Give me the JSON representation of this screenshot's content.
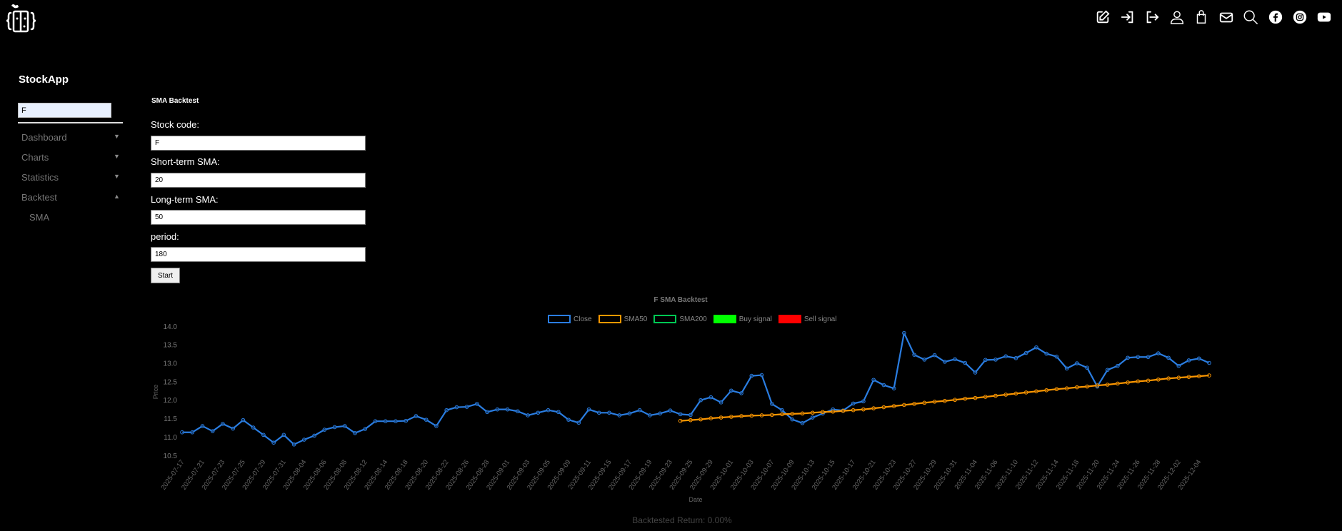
{
  "header": {
    "icons": [
      "edit-icon",
      "login-icon",
      "logout-icon",
      "user-icon",
      "shopping-bag-icon",
      "mail-icon",
      "search-icon",
      "facebook-icon",
      "instagram-icon",
      "youtube-icon"
    ]
  },
  "sidebar": {
    "brand": "StockApp",
    "search_value": "F",
    "items": [
      {
        "label": "Dashboard",
        "arrow": "▼"
      },
      {
        "label": "Charts",
        "arrow": "▼"
      },
      {
        "label": "Statistics",
        "arrow": "▼"
      },
      {
        "label": "Backtest",
        "arrow": "▲"
      }
    ],
    "subitems": [
      {
        "label": "SMA"
      }
    ]
  },
  "form": {
    "title": "SMA Backtest",
    "stock_label": "Stock code:",
    "stock_value": "F",
    "short_label": "Short-term SMA:",
    "short_value": "20",
    "long_label": "Long-term SMA:",
    "long_value": "50",
    "period_label": "period:",
    "period_value": "180",
    "start_label": "Start"
  },
  "result": {
    "return_text": "Backtested Return: 0.00%"
  },
  "chart_data": {
    "type": "line",
    "title": "F SMA Backtest",
    "xlabel": "Date",
    "ylabel": "Price",
    "ylim": [
      10.5,
      14.0
    ],
    "yticks": [
      "10.5",
      "11.0",
      "11.5",
      "12.0",
      "12.5",
      "13.0",
      "13.5",
      "14.0"
    ],
    "grid": false,
    "legend_placement": "top",
    "legend": [
      {
        "name": "Close",
        "color": "#2a7de1",
        "style": "outline"
      },
      {
        "name": "SMA50",
        "color": "#ff9800",
        "style": "outline"
      },
      {
        "name": "SMA200",
        "color": "#00c853",
        "style": "outline"
      },
      {
        "name": "Buy signal",
        "color": "#00ff00",
        "style": "filled"
      },
      {
        "name": "Sell signal",
        "color": "#ff0000",
        "style": "filled"
      }
    ],
    "x": [
      "2025-07-17",
      "2025-07-18",
      "2025-07-21",
      "2025-07-22",
      "2025-07-23",
      "2025-07-24",
      "2025-07-25",
      "2025-07-28",
      "2025-07-29",
      "2025-07-30",
      "2025-07-31",
      "2025-08-01",
      "2025-08-04",
      "2025-08-05",
      "2025-08-06",
      "2025-08-07",
      "2025-08-08",
      "2025-08-11",
      "2025-08-12",
      "2025-08-13",
      "2025-08-14",
      "2025-08-15",
      "2025-08-18",
      "2025-08-19",
      "2025-08-20",
      "2025-08-21",
      "2025-08-22",
      "2025-08-25",
      "2025-08-26",
      "2025-08-27",
      "2025-08-28",
      "2025-08-29",
      "2025-09-01",
      "2025-09-02",
      "2025-09-03",
      "2025-09-04",
      "2025-09-05",
      "2025-09-08",
      "2025-09-09",
      "2025-09-10",
      "2025-09-11",
      "2025-09-12",
      "2025-09-15",
      "2025-09-16",
      "2025-09-17",
      "2025-09-18",
      "2025-09-19",
      "2025-09-22",
      "2025-09-23",
      "2025-09-24",
      "2025-09-25",
      "2025-09-26",
      "2025-09-29",
      "2025-09-30",
      "2025-10-01",
      "2025-10-02",
      "2025-10-03",
      "2025-10-06",
      "2025-10-07",
      "2025-10-08",
      "2025-10-09",
      "2025-10-10",
      "2025-10-13",
      "2025-10-14",
      "2025-10-15",
      "2025-10-16",
      "2025-10-17",
      "2025-10-20",
      "2025-10-21",
      "2025-10-22",
      "2025-10-23",
      "2025-10-24",
      "2025-10-27",
      "2025-10-28",
      "2025-10-29",
      "2025-10-30",
      "2025-10-31",
      "2025-11-03",
      "2025-11-04",
      "2025-11-05",
      "2025-11-06",
      "2025-11-07",
      "2025-11-10",
      "2025-11-11",
      "2025-11-12",
      "2025-11-13",
      "2025-11-14",
      "2025-11-17",
      "2025-11-18",
      "2025-11-19",
      "2025-11-20",
      "2025-11-21",
      "2025-11-24",
      "2025-11-25",
      "2025-11-26",
      "2025-11-27",
      "2025-11-28",
      "2025-12-01",
      "2025-12-02",
      "2025-12-03",
      "2025-12-04",
      "2025-12-05"
    ],
    "series": [
      {
        "name": "Close",
        "color": "#2a7de1",
        "values": [
          11.13,
          11.13,
          11.3,
          11.16,
          11.36,
          11.23,
          11.46,
          11.26,
          11.06,
          10.85,
          11.06,
          10.8,
          10.93,
          11.04,
          11.2,
          11.27,
          11.3,
          11.11,
          11.22,
          11.43,
          11.43,
          11.43,
          11.44,
          11.57,
          11.47,
          11.3,
          11.73,
          11.81,
          11.82,
          11.9,
          11.68,
          11.75,
          11.75,
          11.7,
          11.59,
          11.66,
          11.73,
          11.68,
          11.47,
          11.39,
          11.75,
          11.66,
          11.66,
          11.59,
          11.64,
          11.73,
          11.59,
          11.64,
          11.72,
          11.62,
          11.6,
          12.0,
          12.08,
          11.94,
          12.26,
          12.19,
          12.66,
          12.68,
          11.9,
          11.73,
          11.48,
          11.38,
          11.53,
          11.64,
          11.75,
          11.72,
          11.91,
          11.97,
          12.55,
          12.41,
          12.32,
          13.82,
          13.23,
          13.1,
          13.22,
          13.04,
          13.11,
          13.01,
          12.75,
          13.09,
          13.1,
          13.19,
          13.14,
          13.28,
          13.43,
          13.26,
          13.18,
          12.86,
          13.0,
          12.88,
          12.37,
          12.82,
          12.93,
          13.15,
          13.17,
          13.17,
          13.27,
          13.15,
          12.93,
          13.08,
          13.13,
          13.01
        ]
      },
      {
        "name": "SMA50",
        "color": "#ff9800",
        "values": [
          null,
          null,
          null,
          null,
          null,
          null,
          null,
          null,
          null,
          null,
          null,
          null,
          null,
          null,
          null,
          null,
          null,
          null,
          null,
          null,
          null,
          null,
          null,
          null,
          null,
          null,
          null,
          null,
          null,
          null,
          null,
          null,
          null,
          null,
          null,
          null,
          null,
          null,
          null,
          null,
          null,
          null,
          null,
          null,
          null,
          null,
          null,
          null,
          null,
          11.44,
          11.46,
          11.48,
          11.51,
          11.53,
          11.55,
          11.57,
          11.58,
          11.59,
          11.6,
          11.62,
          11.63,
          11.64,
          11.66,
          11.68,
          11.69,
          11.71,
          11.73,
          11.75,
          11.78,
          11.81,
          11.84,
          11.87,
          11.9,
          11.93,
          11.96,
          11.98,
          12.01,
          12.04,
          12.06,
          12.09,
          12.12,
          12.15,
          12.18,
          12.21,
          12.24,
          12.27,
          12.3,
          12.32,
          12.35,
          12.37,
          12.4,
          12.42,
          12.45,
          12.48,
          12.51,
          12.53,
          12.56,
          12.59,
          12.61,
          12.63,
          12.65,
          12.67
        ]
      }
    ]
  }
}
